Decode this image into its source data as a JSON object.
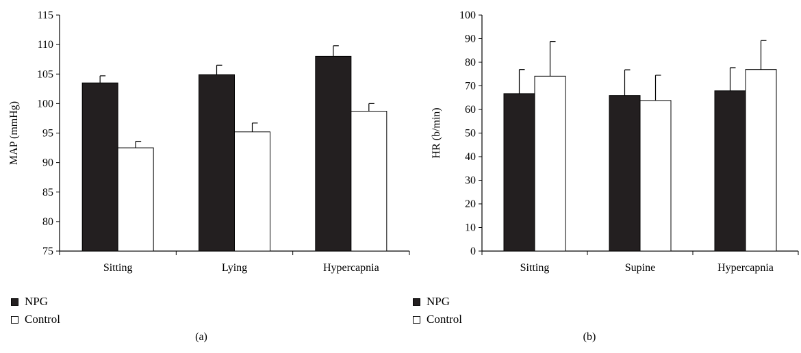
{
  "chart_data": [
    {
      "type": "bar",
      "panel_label": "(a)",
      "ylabel": "MAP (mmHg)",
      "xlabel": "",
      "ylim": [
        75,
        115
      ],
      "yticks": [
        75,
        80,
        85,
        90,
        95,
        100,
        105,
        110,
        115
      ],
      "categories": [
        "Sitting",
        "Lying",
        "Hypercapnia"
      ],
      "series": [
        {
          "name": "NPG",
          "color": "#231f20",
          "values": [
            103.5,
            104.9,
            108.0
          ],
          "errors": [
            1.2,
            1.6,
            1.8
          ]
        },
        {
          "name": "Control",
          "color": "#ffffff",
          "values": [
            92.5,
            95.2,
            98.7
          ],
          "errors": [
            1.1,
            1.5,
            1.3
          ]
        }
      ],
      "legend_position": "bottom-left",
      "grid": false
    },
    {
      "type": "bar",
      "panel_label": "(b)",
      "ylabel": "HR (b/min)",
      "xlabel": "",
      "ylim": [
        0,
        100
      ],
      "yticks": [
        0,
        10,
        20,
        30,
        40,
        50,
        60,
        70,
        80,
        90,
        100
      ],
      "categories": [
        "Sitting",
        "Supine",
        "Hypercapnia"
      ],
      "series": [
        {
          "name": "NPG",
          "color": "#231f20",
          "values": [
            66.7,
            65.9,
            67.9
          ],
          "errors": [
            10.2,
            10.9,
            9.8
          ]
        },
        {
          "name": "Control",
          "color": "#ffffff",
          "values": [
            74.1,
            63.8,
            76.9
          ],
          "errors": [
            14.7,
            10.7,
            12.3
          ]
        }
      ],
      "legend_position": "bottom-left",
      "grid": false
    }
  ]
}
